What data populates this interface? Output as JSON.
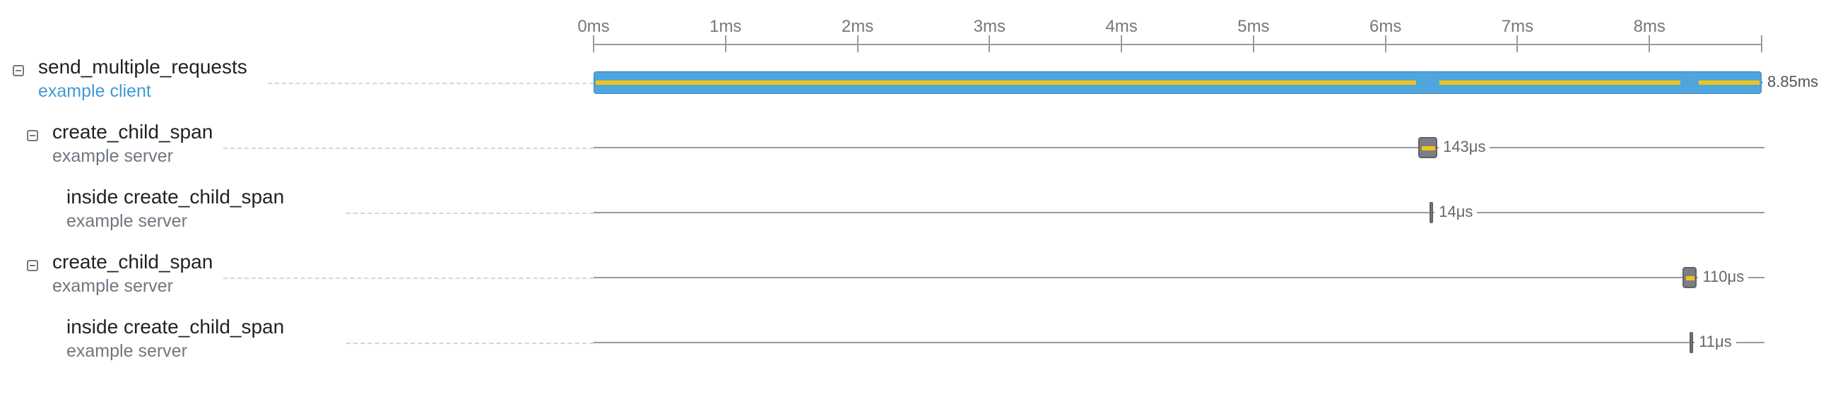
{
  "timeline": {
    "axis_max_ms": 8.85,
    "ticks": [
      "0ms",
      "1ms",
      "2ms",
      "3ms",
      "4ms",
      "5ms",
      "6ms",
      "7ms",
      "8ms"
    ],
    "tick_values_ms": [
      0,
      1,
      2,
      3,
      4,
      5,
      6,
      7,
      8
    ]
  },
  "colors": {
    "root_bar": "#4ea6dc",
    "child_bar": "#7b7f85",
    "self_time": "#f2c318",
    "root_service_text": "#3f9bd6",
    "child_service_text": "#6f7780"
  },
  "spans": [
    {
      "name": "send_multiple_requests",
      "service": "example client",
      "depth": 0,
      "collapsible": true,
      "start_ms": 0,
      "duration_ms": 8.85,
      "duration_label": "8.85ms",
      "self_time_segments_ms": [
        [
          0,
          6.25
        ],
        [
          6.39,
          8.25
        ],
        [
          8.36,
          8.85
        ]
      ]
    },
    {
      "name": "create_child_span",
      "service": "example server",
      "depth": 1,
      "collapsible": true,
      "start_ms": 6.25,
      "duration_ms": 0.143,
      "duration_label": "143μs",
      "self_time_segments_ms": [
        [
          6.25,
          6.393
        ]
      ]
    },
    {
      "name": "inside create_child_span",
      "service": "example server",
      "depth": 2,
      "collapsible": false,
      "start_ms": 6.335,
      "duration_ms": 0.014,
      "duration_label": "14μs",
      "self_time_segments_ms": []
    },
    {
      "name": "create_child_span",
      "service": "example server",
      "depth": 1,
      "collapsible": true,
      "start_ms": 8.25,
      "duration_ms": 0.11,
      "duration_label": "110μs",
      "self_time_segments_ms": [
        [
          8.25,
          8.36
        ]
      ]
    },
    {
      "name": "inside create_child_span",
      "service": "example server",
      "depth": 2,
      "collapsible": false,
      "start_ms": 8.305,
      "duration_ms": 0.011,
      "duration_label": "11μs",
      "self_time_segments_ms": []
    }
  ]
}
